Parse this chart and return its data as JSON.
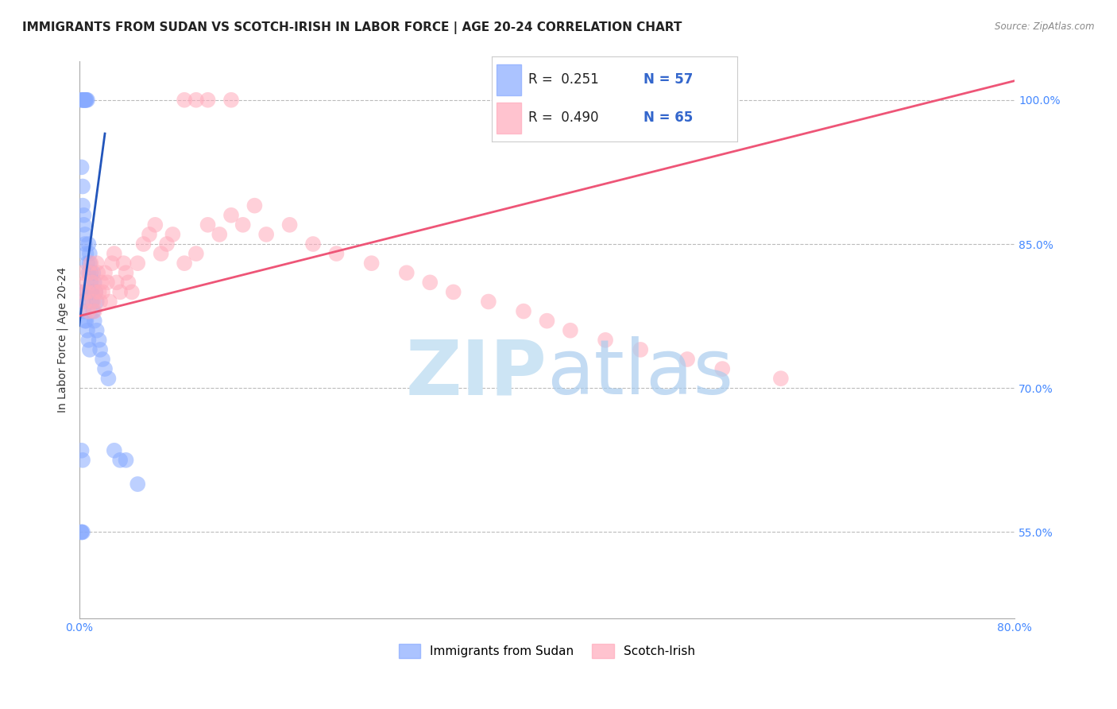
{
  "title": "IMMIGRANTS FROM SUDAN VS SCOTCH-IRISH IN LABOR FORCE | AGE 20-24 CORRELATION CHART",
  "source": "Source: ZipAtlas.com",
  "ylabel": "In Labor Force | Age 20-24",
  "xlim": [
    0.0,
    0.8
  ],
  "ylim": [
    0.46,
    1.04
  ],
  "y_ticks": [
    0.55,
    0.7,
    0.85,
    1.0
  ],
  "y_tick_labels": [
    "55.0%",
    "70.0%",
    "85.0%",
    "100.0%"
  ],
  "grid_color": "#bbbbbb",
  "background_color": "#ffffff",
  "blue_color": "#88aaff",
  "pink_color": "#ffaabb",
  "blue_line_color": "#2255bb",
  "pink_line_color": "#ee5577",
  "legend_R_blue": "0.251",
  "legend_N_blue": "57",
  "legend_R_pink": "0.490",
  "legend_N_pink": "65",
  "title_fontsize": 11,
  "axis_label_fontsize": 10,
  "tick_fontsize": 10,
  "blue_dots_x": [
    0.002,
    0.003,
    0.004,
    0.005,
    0.005,
    0.006,
    0.006,
    0.007,
    0.003,
    0.004,
    0.002,
    0.003,
    0.003,
    0.004,
    0.004,
    0.005,
    0.005,
    0.006,
    0.007,
    0.008,
    0.008,
    0.009,
    0.009,
    0.01,
    0.01,
    0.011,
    0.012,
    0.013,
    0.014,
    0.015,
    0.002,
    0.003,
    0.004,
    0.005,
    0.006,
    0.007,
    0.008,
    0.009,
    0.01,
    0.011,
    0.012,
    0.013,
    0.015,
    0.017,
    0.018,
    0.02,
    0.022,
    0.025,
    0.03,
    0.035,
    0.002,
    0.003,
    0.002,
    0.003,
    0.002,
    0.04,
    0.05
  ],
  "blue_dots_y": [
    1.0,
    1.0,
    1.0,
    1.0,
    1.0,
    1.0,
    1.0,
    1.0,
    1.0,
    1.0,
    0.93,
    0.91,
    0.89,
    0.88,
    0.87,
    0.86,
    0.85,
    0.84,
    0.83,
    0.82,
    0.85,
    0.84,
    0.83,
    0.82,
    0.81,
    0.8,
    0.82,
    0.81,
    0.8,
    0.79,
    0.8,
    0.79,
    0.78,
    0.77,
    0.77,
    0.76,
    0.75,
    0.74,
    0.8,
    0.79,
    0.78,
    0.77,
    0.76,
    0.75,
    0.74,
    0.73,
    0.72,
    0.71,
    0.635,
    0.625,
    0.635,
    0.625,
    0.55,
    0.55,
    0.55,
    0.625,
    0.6
  ],
  "pink_dots_x": [
    0.003,
    0.004,
    0.005,
    0.006,
    0.007,
    0.008,
    0.009,
    0.01,
    0.011,
    0.012,
    0.013,
    0.014,
    0.015,
    0.016,
    0.017,
    0.018,
    0.019,
    0.02,
    0.022,
    0.024,
    0.026,
    0.028,
    0.03,
    0.032,
    0.035,
    0.038,
    0.04,
    0.042,
    0.045,
    0.05,
    0.055,
    0.06,
    0.065,
    0.07,
    0.075,
    0.08,
    0.09,
    0.1,
    0.11,
    0.12,
    0.13,
    0.14,
    0.15,
    0.16,
    0.18,
    0.2,
    0.22,
    0.25,
    0.28,
    0.3,
    0.32,
    0.35,
    0.38,
    0.4,
    0.42,
    0.45,
    0.48,
    0.52,
    0.55,
    0.6,
    0.09,
    0.1,
    0.11,
    0.13,
    0.55
  ],
  "pink_dots_y": [
    0.82,
    0.8,
    0.79,
    0.81,
    0.8,
    0.78,
    0.82,
    0.83,
    0.81,
    0.79,
    0.78,
    0.8,
    0.83,
    0.82,
    0.8,
    0.79,
    0.81,
    0.8,
    0.82,
    0.81,
    0.79,
    0.83,
    0.84,
    0.81,
    0.8,
    0.83,
    0.82,
    0.81,
    0.8,
    0.83,
    0.85,
    0.86,
    0.87,
    0.84,
    0.85,
    0.86,
    0.83,
    0.84,
    0.87,
    0.86,
    0.88,
    0.87,
    0.89,
    0.86,
    0.87,
    0.85,
    0.84,
    0.83,
    0.82,
    0.81,
    0.8,
    0.79,
    0.78,
    0.77,
    0.76,
    0.75,
    0.74,
    0.73,
    0.72,
    0.71,
    1.0,
    1.0,
    1.0,
    1.0,
    1.0
  ],
  "blue_line_x": [
    0.0,
    0.022
  ],
  "blue_line_y": [
    0.765,
    0.965
  ],
  "pink_line_x": [
    0.0,
    0.8
  ],
  "pink_line_y": [
    0.775,
    1.02
  ]
}
